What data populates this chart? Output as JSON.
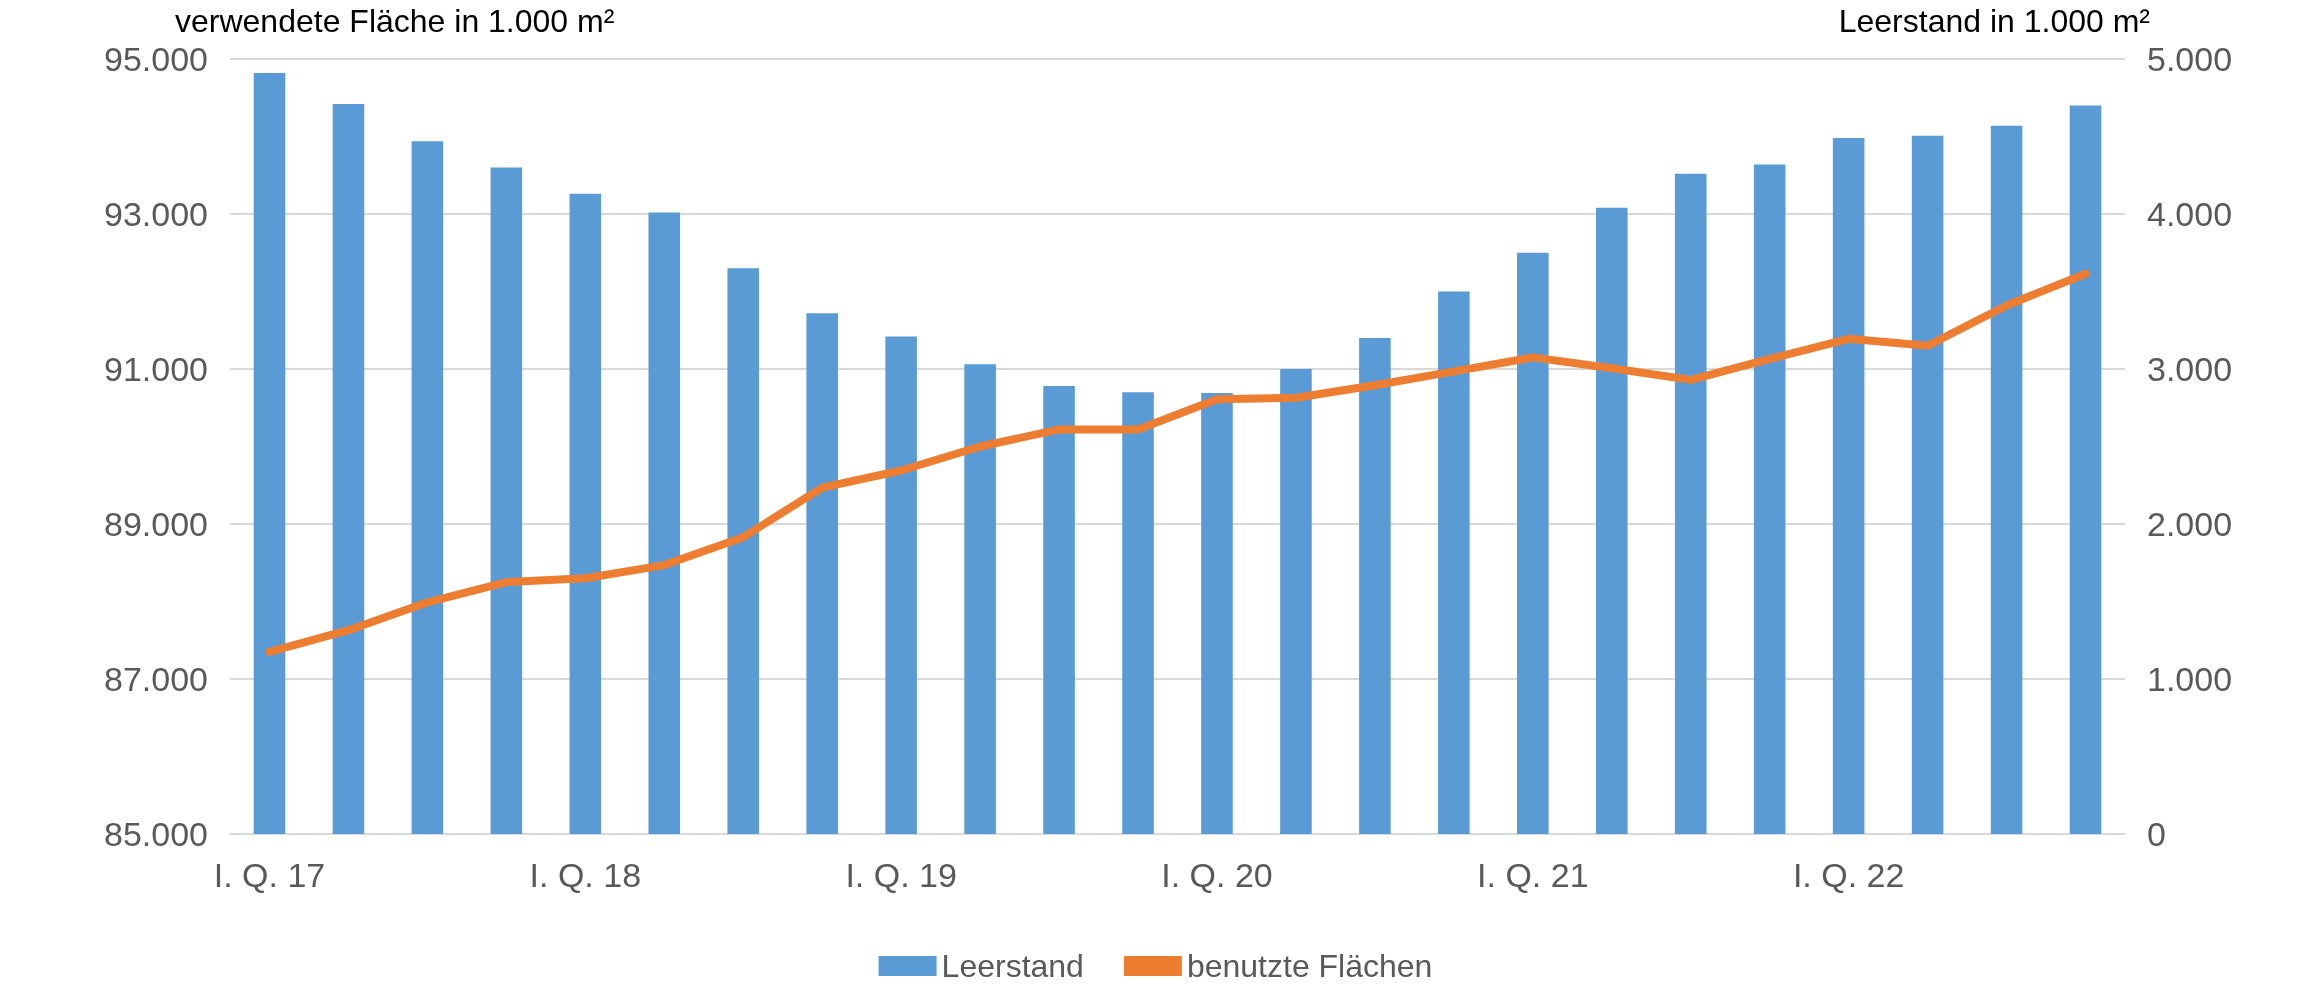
{
  "chart_data": {
    "type": "bar",
    "ylabel": "verwendete Fläche in 1.000 m²",
    "y2label": "Leerstand in 1.000 m²",
    "categories": [
      "I. Q. 17",
      null,
      null,
      null,
      "I. Q. 18",
      null,
      null,
      null,
      "I. Q. 19",
      null,
      null,
      null,
      "I. Q. 20",
      null,
      null,
      null,
      "I. Q. 21",
      null,
      null,
      null,
      "I. Q. 22",
      null,
      null,
      null
    ],
    "series": [
      {
        "name": "Leerstand",
        "axis": "y2",
        "color": "#5b9bd5",
        "values": [
          4910,
          4710,
          4470,
          4300,
          4130,
          4010,
          3650,
          3360,
          3210,
          3030,
          2890,
          2850,
          2845,
          3000,
          3200,
          3500,
          3750,
          4040,
          4260,
          4320,
          4490,
          4505,
          4570,
          4700
        ]
      },
      {
        "name": "benutzte Flächen",
        "type": "line",
        "color": "#ed7d31",
        "values": [
          87350,
          87630,
          87990,
          88250,
          88300,
          88470,
          88830,
          89470,
          89690,
          90000,
          90220,
          90220,
          90610,
          90630,
          90790,
          90970,
          91150,
          91010,
          90860,
          91130,
          91390,
          91300,
          91820,
          92230
        ]
      }
    ],
    "ylim": [
      85000,
      95000
    ],
    "yticks": [
      {
        "value": 85000,
        "label": "85.000"
      },
      {
        "value": 87000,
        "label": "87.000"
      },
      {
        "value": 89000,
        "label": "89.000"
      },
      {
        "value": 91000,
        "label": "91.000"
      },
      {
        "value": 93000,
        "label": "93.000"
      },
      {
        "value": 95000,
        "label": "95.000"
      }
    ],
    "y2lim": [
      0,
      5000
    ],
    "y2ticks": [
      0,
      {
        "value": 1000,
        "label": "1.000"
      },
      {
        "value": 2000,
        "label": "2.000"
      },
      {
        "value": 3000,
        "label": "3.000"
      },
      {
        "value": 4000,
        "label": "4.000"
      },
      {
        "value": 5000,
        "label": "5.000"
      }
    ],
    "grid": "y",
    "legend": "bottom",
    "marker": "none",
    "line_style": "solid"
  }
}
